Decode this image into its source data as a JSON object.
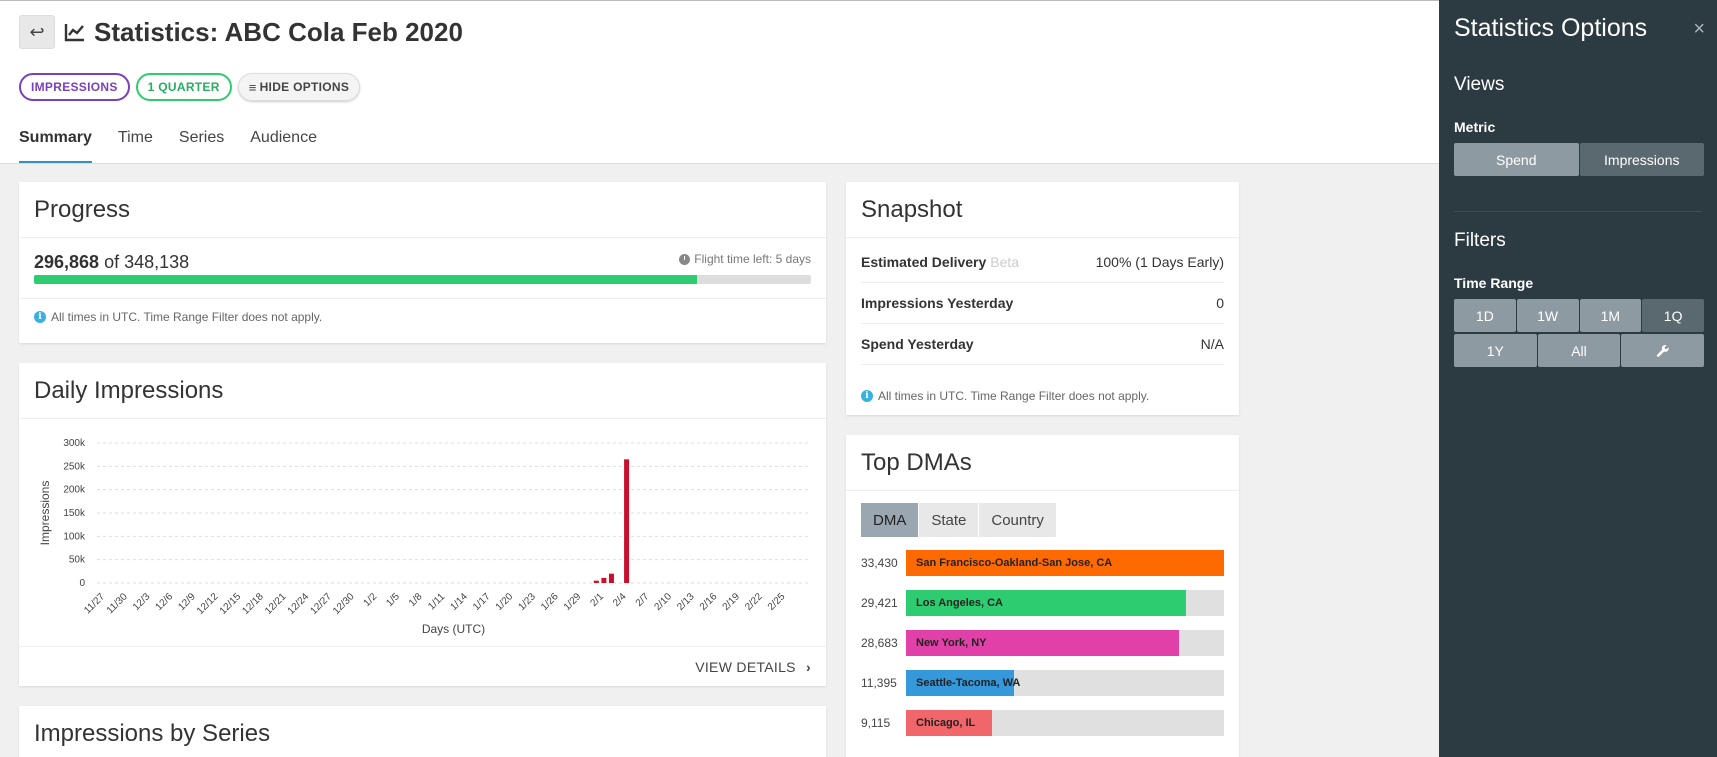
{
  "header": {
    "title": "Statistics: ABC Cola Feb 2020",
    "pills": {
      "metric": "IMPRESSIONS",
      "range": "1 QUARTER",
      "options": "HIDE OPTIONS"
    },
    "tabs": [
      "Summary",
      "Time",
      "Series",
      "Audience"
    ]
  },
  "progress": {
    "title": "Progress",
    "current": "296,868",
    "of_label": "of",
    "total": "348,138",
    "fraction": 0.853,
    "flight_time": "Flight time left: 5 days",
    "note": "All times in UTC. Time Range Filter does not apply."
  },
  "daily": {
    "title": "Daily Impressions",
    "view_details": "VIEW DETAILS"
  },
  "series_card": {
    "title": "Impressions by Series"
  },
  "snapshot": {
    "title": "Snapshot",
    "rows": [
      {
        "label": "Estimated Delivery",
        "beta": "Beta",
        "value": "100% (1 Days Early)"
      },
      {
        "label": "Impressions Yesterday",
        "value": "0"
      },
      {
        "label": "Spend Yesterday",
        "value": "N/A"
      }
    ],
    "note": "All times in UTC. Time Range Filter does not apply."
  },
  "dma": {
    "title": "Top DMAs",
    "tabs": [
      "DMA",
      "State",
      "Country"
    ],
    "rows": [
      {
        "value": "33,430",
        "label": "San Francisco-Oakland-San Jose, CA",
        "fraction": 1.0,
        "color": "#ff6a00"
      },
      {
        "value": "29,421",
        "label": "Los Angeles, CA",
        "fraction": 0.88,
        "color": "#2ecc71"
      },
      {
        "value": "28,683",
        "label": "New York, NY",
        "fraction": 0.86,
        "color": "#e040a8"
      },
      {
        "value": "11,395",
        "label": "Seattle-Tacoma, WA",
        "fraction": 0.34,
        "color": "#3498db"
      },
      {
        "value": "9,115",
        "label": "Chicago, IL",
        "fraction": 0.27,
        "color": "#f0666a"
      }
    ]
  },
  "panel": {
    "title": "Statistics Options",
    "views_heading": "Views",
    "metric_label": "Metric",
    "metric_options": [
      "Spend",
      "Impressions"
    ],
    "filters_heading": "Filters",
    "time_range_label": "Time Range",
    "time_row1": [
      "1D",
      "1W",
      "1M",
      "1Q"
    ],
    "time_row2": [
      "1Y",
      "All"
    ]
  },
  "chart_data": {
    "type": "bar",
    "title": "",
    "xlabel": "Days (UTC)",
    "ylabel": "Impressions",
    "ylim": [
      0,
      300000
    ],
    "yticks": [
      0,
      50000,
      100000,
      150000,
      200000,
      250000,
      300000
    ],
    "ytick_labels": [
      "0",
      "50k",
      "100k",
      "150k",
      "200k",
      "250k",
      "300k"
    ],
    "xtick_labels": [
      "11/27",
      "11/30",
      "12/3",
      "12/6",
      "12/9",
      "12/12",
      "12/15",
      "12/18",
      "12/21",
      "12/24",
      "12/27",
      "12/30",
      "1/2",
      "1/5",
      "1/8",
      "1/11",
      "1/14",
      "1/17",
      "1/20",
      "1/23",
      "1/26",
      "1/29",
      "2/1",
      "2/4",
      "2/7",
      "2/10",
      "2/13",
      "2/16",
      "2/19",
      "2/22",
      "2/25"
    ],
    "grid": true,
    "bar_color": "#c8102e",
    "categories": [
      "1/31",
      "2/1",
      "2/2",
      "2/3",
      "2/4"
    ],
    "values": [
      5000,
      11000,
      20000,
      0,
      265000
    ]
  }
}
